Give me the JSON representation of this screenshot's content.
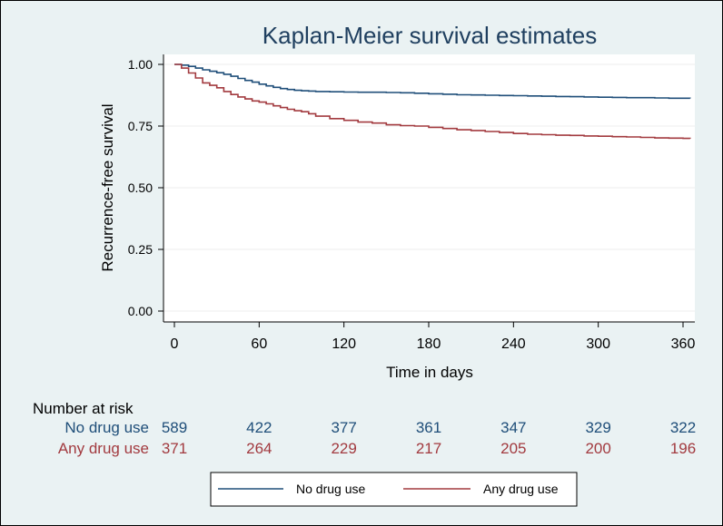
{
  "chart_data": {
    "type": "line",
    "title": "Kaplan-Meier survival estimates",
    "xlabel": "Time in days",
    "ylabel": "Recurrence-free survival",
    "xlim": [
      0,
      365
    ],
    "ylim": [
      0,
      1
    ],
    "x_ticks": [
      "0",
      "60",
      "120",
      "180",
      "240",
      "300",
      "360"
    ],
    "y_ticks": [
      "0.00",
      "0.25",
      "0.50",
      "0.75",
      "1.00"
    ],
    "grid": "horizontal",
    "legend_position": "bottom",
    "series": [
      {
        "name": "No drug use",
        "color": "#1f4e79",
        "x": [
          0,
          5,
          10,
          15,
          20,
          25,
          30,
          35,
          40,
          45,
          50,
          55,
          60,
          65,
          70,
          75,
          80,
          85,
          90,
          95,
          100,
          110,
          120,
          130,
          140,
          150,
          160,
          170,
          180,
          190,
          200,
          210,
          220,
          230,
          240,
          250,
          260,
          270,
          280,
          290,
          300,
          310,
          320,
          330,
          340,
          350,
          360,
          365
        ],
        "y": [
          1.0,
          0.997,
          0.992,
          0.985,
          0.978,
          0.972,
          0.966,
          0.96,
          0.952,
          0.943,
          0.935,
          0.928,
          0.92,
          0.913,
          0.907,
          0.902,
          0.898,
          0.895,
          0.893,
          0.892,
          0.89,
          0.889,
          0.888,
          0.887,
          0.887,
          0.886,
          0.885,
          0.883,
          0.881,
          0.879,
          0.877,
          0.876,
          0.875,
          0.874,
          0.873,
          0.872,
          0.871,
          0.87,
          0.869,
          0.868,
          0.867,
          0.866,
          0.865,
          0.865,
          0.864,
          0.863,
          0.863,
          0.862
        ]
      },
      {
        "name": "Any drug use",
        "color": "#a23a3f",
        "x": [
          0,
          5,
          10,
          15,
          20,
          25,
          30,
          35,
          40,
          45,
          50,
          55,
          60,
          65,
          70,
          75,
          80,
          85,
          90,
          95,
          100,
          110,
          120,
          130,
          140,
          150,
          160,
          170,
          180,
          190,
          200,
          210,
          220,
          230,
          240,
          250,
          260,
          270,
          280,
          290,
          300,
          310,
          320,
          330,
          340,
          350,
          360,
          365
        ],
        "y": [
          1.0,
          0.985,
          0.965,
          0.945,
          0.925,
          0.915,
          0.905,
          0.89,
          0.878,
          0.868,
          0.86,
          0.852,
          0.847,
          0.84,
          0.832,
          0.825,
          0.818,
          0.812,
          0.808,
          0.8,
          0.79,
          0.78,
          0.773,
          0.766,
          0.762,
          0.755,
          0.752,
          0.75,
          0.745,
          0.74,
          0.735,
          0.732,
          0.728,
          0.724,
          0.72,
          0.717,
          0.715,
          0.713,
          0.712,
          0.71,
          0.709,
          0.707,
          0.706,
          0.704,
          0.702,
          0.701,
          0.7,
          0.699
        ]
      }
    ]
  },
  "risk_table": {
    "title": "Number at risk",
    "rows": [
      {
        "label": "No drug use",
        "color": "#1f4e79",
        "counts": [
          "589",
          "422",
          "377",
          "361",
          "347",
          "329",
          "322"
        ]
      },
      {
        "label": "Any drug use",
        "color": "#a23a3f",
        "counts": [
          "371",
          "264",
          "229",
          "217",
          "205",
          "200",
          "196"
        ]
      }
    ]
  },
  "legend": [
    {
      "label": "No drug use",
      "color": "#1f4e79"
    },
    {
      "label": "Any drug use",
      "color": "#a23a3f"
    }
  ]
}
